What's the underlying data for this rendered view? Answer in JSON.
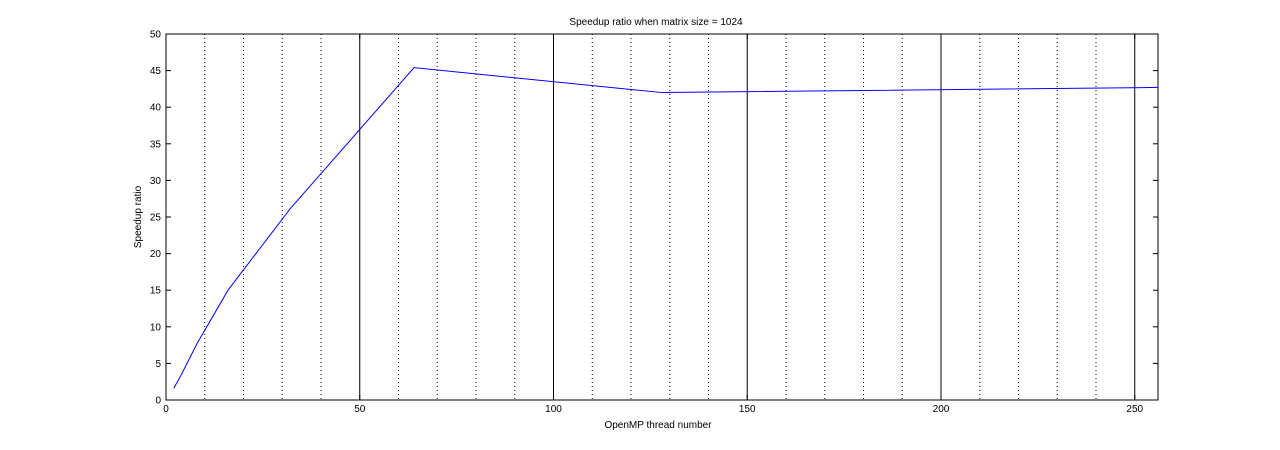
{
  "chart_data": {
    "type": "line",
    "title": "Speedup ratio when matrix size = 1024",
    "xlabel": "OpenMP thread number",
    "ylabel": "Speedup ratio",
    "xlim": [
      0,
      256
    ],
    "ylim": [
      0,
      50
    ],
    "xticks": [
      0,
      50,
      100,
      150,
      200,
      250
    ],
    "yticks": [
      0,
      5,
      10,
      15,
      20,
      25,
      30,
      35,
      40,
      45,
      50
    ],
    "major_grid_x": [
      50,
      100,
      150,
      200,
      250
    ],
    "minor_grid_x": [
      10,
      20,
      30,
      40,
      60,
      70,
      80,
      90,
      110,
      120,
      130,
      140,
      160,
      170,
      180,
      190,
      210,
      220,
      230,
      240
    ],
    "series_color": "#0000ff",
    "series": [
      {
        "x": [
          2,
          4,
          8,
          16,
          32,
          64,
          128,
          256
        ],
        "values": [
          1.6,
          3.5,
          7.7,
          15.0,
          26.1,
          45.4,
          42.0,
          42.7
        ]
      }
    ]
  }
}
